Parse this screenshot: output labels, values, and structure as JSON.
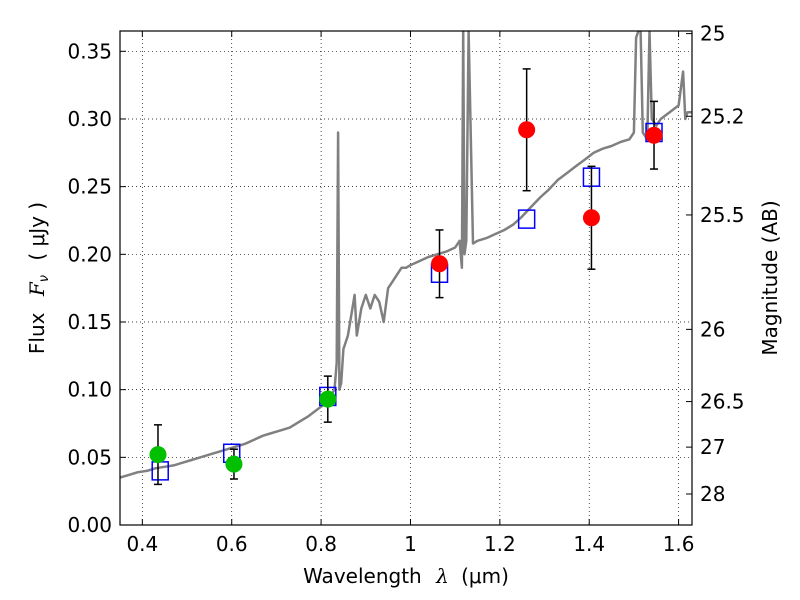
{
  "chart_data": {
    "type": "scatter",
    "xlabel_prefix": "Wavelength",
    "xlabel_symbol": "λ",
    "xlabel_unit": "(μm)",
    "ylabel_prefix": "Flux",
    "ylabel_symbol": "F",
    "ylabel_subscript": "ν",
    "ylabel_unit": "( μJy )",
    "y2label": "Magnitude (AB)",
    "xlim": [
      0.35,
      1.63
    ],
    "ylim": [
      0.0,
      0.365
    ],
    "grid": true,
    "x_ticks": [
      {
        "value": 0.4,
        "label": "0.4"
      },
      {
        "value": 0.6,
        "label": "0.6"
      },
      {
        "value": 0.8,
        "label": "0.8"
      },
      {
        "value": 1.0,
        "label": "1"
      },
      {
        "value": 1.2,
        "label": "1.2"
      },
      {
        "value": 1.4,
        "label": "1.4"
      },
      {
        "value": 1.6,
        "label": "1.6"
      }
    ],
    "y_ticks": [
      {
        "value": 0.0,
        "label": "0.00"
      },
      {
        "value": 0.05,
        "label": "0.05"
      },
      {
        "value": 0.1,
        "label": "0.10"
      },
      {
        "value": 0.15,
        "label": "0.15"
      },
      {
        "value": 0.2,
        "label": "0.20"
      },
      {
        "value": 0.25,
        "label": "0.25"
      },
      {
        "value": 0.3,
        "label": "0.30"
      },
      {
        "value": 0.35,
        "label": "0.35"
      }
    ],
    "y2_ticks": [
      {
        "label": "25",
        "mag": 25.0
      },
      {
        "label": "25.2",
        "mag": 25.2
      },
      {
        "label": "25.5",
        "mag": 25.5
      },
      {
        "label": "26",
        "mag": 26.0
      },
      {
        "label": "26.5",
        "mag": 26.5
      },
      {
        "label": "27",
        "mag": 27.0
      },
      {
        "label": "28",
        "mag": 28.0
      }
    ],
    "series": [
      {
        "kind": "line",
        "color": "#808080",
        "x": [
          0.35,
          0.37,
          0.39,
          0.41,
          0.43,
          0.45,
          0.47,
          0.49,
          0.51,
          0.53,
          0.55,
          0.57,
          0.59,
          0.61,
          0.63,
          0.65,
          0.67,
          0.69,
          0.71,
          0.73,
          0.75,
          0.77,
          0.79,
          0.81,
          0.82,
          0.83,
          0.835,
          0.838,
          0.841,
          0.845,
          0.85,
          0.86,
          0.87,
          0.875,
          0.88,
          0.89,
          0.9,
          0.91,
          0.92,
          0.93,
          0.94,
          0.95,
          0.96,
          0.97,
          0.98,
          0.99,
          1.0,
          1.02,
          1.04,
          1.06,
          1.08,
          1.1,
          1.11,
          1.115,
          1.118,
          1.121,
          1.125,
          1.13,
          1.14,
          1.15,
          1.17,
          1.19,
          1.21,
          1.23,
          1.25,
          1.27,
          1.29,
          1.31,
          1.33,
          1.35,
          1.37,
          1.39,
          1.41,
          1.43,
          1.45,
          1.47,
          1.49,
          1.5,
          1.505,
          1.51,
          1.515,
          1.52,
          1.53,
          1.535,
          1.54,
          1.55,
          1.56,
          1.58,
          1.6,
          1.61,
          1.615,
          1.62,
          1.63
        ],
        "y": [
          0.035,
          0.037,
          0.039,
          0.04,
          0.042,
          0.043,
          0.044,
          0.046,
          0.048,
          0.05,
          0.052,
          0.054,
          0.056,
          0.058,
          0.06,
          0.063,
          0.066,
          0.068,
          0.07,
          0.072,
          0.076,
          0.08,
          0.085,
          0.09,
          0.095,
          0.1,
          0.12,
          0.29,
          0.1,
          0.105,
          0.13,
          0.14,
          0.16,
          0.17,
          0.14,
          0.16,
          0.17,
          0.16,
          0.17,
          0.165,
          0.15,
          0.175,
          0.18,
          0.185,
          0.19,
          0.19,
          0.192,
          0.195,
          0.198,
          0.2,
          0.202,
          0.205,
          0.21,
          0.19,
          0.365,
          0.2,
          0.21,
          0.365,
          0.208,
          0.21,
          0.212,
          0.215,
          0.218,
          0.222,
          0.228,
          0.235,
          0.242,
          0.248,
          0.255,
          0.26,
          0.265,
          0.27,
          0.275,
          0.278,
          0.28,
          0.283,
          0.285,
          0.29,
          0.36,
          0.365,
          0.365,
          0.29,
          0.285,
          0.365,
          0.3,
          0.295,
          0.3,
          0.305,
          0.31,
          0.335,
          0.3,
          0.305,
          0.305
        ]
      },
      {
        "kind": "model-squares",
        "color": "#0000ff",
        "x": [
          0.44,
          0.6,
          0.815,
          1.065,
          1.26,
          1.405,
          1.545
        ],
        "y": [
          0.04,
          0.053,
          0.095,
          0.186,
          0.226,
          0.257,
          0.29
        ]
      },
      {
        "kind": "points-errorbars",
        "color": "#00c000",
        "x": [
          0.435,
          0.605,
          0.815
        ],
        "y": [
          0.052,
          0.045,
          0.093
        ],
        "err": [
          0.022,
          0.011,
          0.017
        ]
      },
      {
        "kind": "points-errorbars",
        "color": "#ff0000",
        "x": [
          1.065,
          1.26,
          1.405,
          1.545
        ],
        "y": [
          0.193,
          0.292,
          0.227,
          0.288
        ],
        "err": [
          0.025,
          0.045,
          0.038,
          0.025
        ]
      }
    ]
  }
}
